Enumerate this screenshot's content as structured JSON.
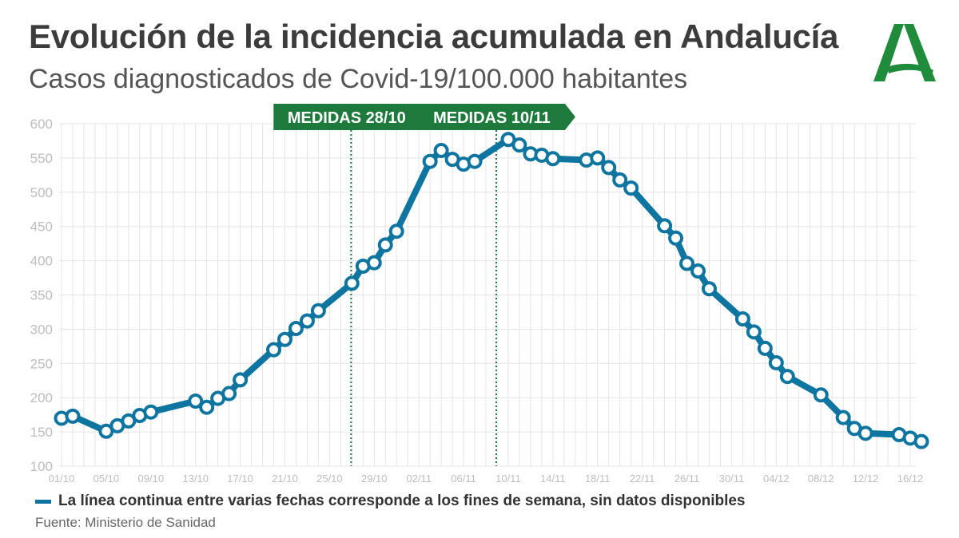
{
  "title": "Evolución de la incidencia acumulada en Andalucía",
  "subtitle": "Casos diagnosticados de Covid-19/100.000 habitantes",
  "legend_text": "La línea continua entre varias fechas corresponde a los fines de semana, sin datos disponibles",
  "source": "Fuente: Ministerio de Sanidad",
  "colors": {
    "line": "#0e75a0",
    "marker_fill": "#ffffff",
    "annotation": "#1e7a3c",
    "grid": "#e4e4e4",
    "tick_text": "#bdbdbd",
    "logo": "#1e8c3a"
  },
  "chart_data": {
    "type": "line",
    "x_label": "",
    "y_label": "",
    "ylim": [
      100,
      600
    ],
    "y_ticks": [
      100,
      150,
      200,
      250,
      300,
      350,
      400,
      450,
      500,
      550,
      600
    ],
    "x_range": [
      "01/10",
      "16/12"
    ],
    "x_ticks": [
      "01/10",
      "05/10",
      "09/10",
      "13/10",
      "17/10",
      "21/10",
      "25/10",
      "29/10",
      "02/11",
      "06/11",
      "10/11",
      "14/11",
      "18/11",
      "22/11",
      "26/11",
      "30/11",
      "04/12",
      "08/12",
      "12/12",
      "16/12"
    ],
    "grid": true,
    "series": [
      {
        "points": [
          [
            "01/10",
            170
          ],
          [
            "02/10",
            173
          ],
          [
            "05/10",
            151
          ],
          [
            "06/10",
            159
          ],
          [
            "07/10",
            166
          ],
          [
            "08/10",
            174
          ],
          [
            "09/10",
            179
          ],
          [
            "13/10",
            195
          ],
          [
            "14/10",
            186
          ],
          [
            "15/10",
            199
          ],
          [
            "16/10",
            206
          ],
          [
            "17/10",
            226
          ],
          [
            "20/10",
            270
          ],
          [
            "21/10",
            285
          ],
          [
            "22/10",
            301
          ],
          [
            "23/10",
            312
          ],
          [
            "24/10",
            327
          ],
          [
            "27/10",
            367
          ],
          [
            "28/10",
            392
          ],
          [
            "29/10",
            397
          ],
          [
            "30/10",
            423
          ],
          [
            "31/10",
            443
          ],
          [
            "03/11",
            545
          ],
          [
            "04/11",
            561
          ],
          [
            "05/11",
            548
          ],
          [
            "06/11",
            541
          ],
          [
            "07/11",
            545
          ],
          [
            "10/11",
            577
          ],
          [
            "11/11",
            569
          ],
          [
            "12/11",
            556
          ],
          [
            "13/11",
            554
          ],
          [
            "14/11",
            549
          ],
          [
            "17/11",
            547
          ],
          [
            "18/11",
            550
          ],
          [
            "19/11",
            536
          ],
          [
            "20/11",
            518
          ],
          [
            "21/11",
            506
          ],
          [
            "24/11",
            451
          ],
          [
            "25/11",
            433
          ],
          [
            "26/11",
            396
          ],
          [
            "27/11",
            385
          ],
          [
            "28/11",
            359
          ],
          [
            "01/12",
            315
          ],
          [
            "02/12",
            296
          ],
          [
            "03/12",
            272
          ],
          [
            "04/12",
            251
          ],
          [
            "05/12",
            231
          ],
          [
            "08/12",
            204
          ],
          [
            "10/12",
            171
          ],
          [
            "11/12",
            155
          ],
          [
            "12/12",
            148
          ],
          [
            "15/12",
            146
          ],
          [
            "16/12",
            141
          ],
          [
            "17/12",
            136
          ]
        ]
      }
    ],
    "annotations": [
      {
        "label": "MEDIDAS 28/10",
        "date": "28/10"
      },
      {
        "label": "MEDIDAS 10/11",
        "date": "10/11"
      }
    ]
  }
}
